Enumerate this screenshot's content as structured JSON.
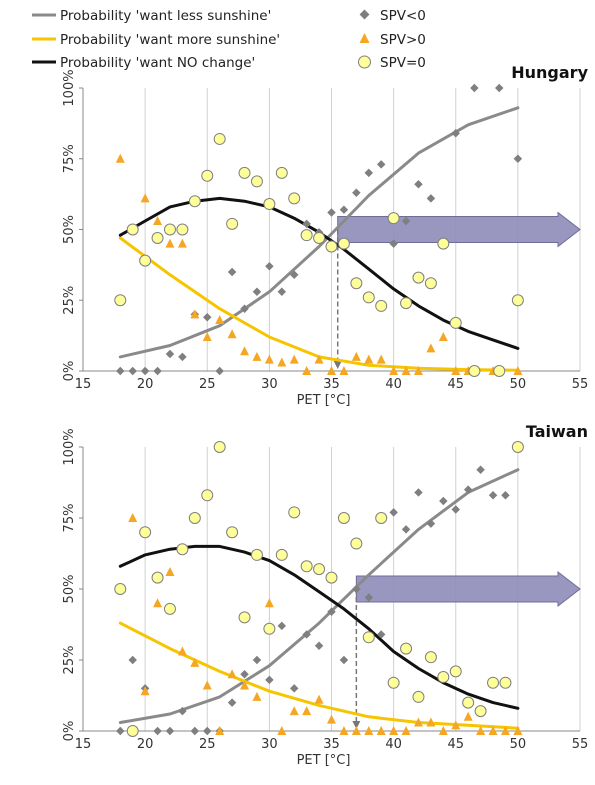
{
  "legend": {
    "less": "Probability 'want less sunshine'",
    "more": "Probability 'want more sunshine'",
    "none": "Probability 'want NO change'",
    "neg": "SPV<0",
    "pos": "SPV>0",
    "zero": "SPV=0"
  },
  "colors": {
    "less": "#8a8a8a",
    "more": "#f6c500",
    "none": "#111111",
    "neg_marker": "#7f7f7f",
    "pos_marker": "#f5a623",
    "zero_fill": "#ffff99",
    "zero_stroke": "#7f7f7f",
    "arrow": "#8e8cb8",
    "grid": "#d0d0d0"
  },
  "chart_data": [
    {
      "type": "scatter",
      "title": "Hungary",
      "xlabel": "PET [°C]",
      "ylabel": "",
      "xlim": [
        15,
        55
      ],
      "ylim": [
        0,
        1
      ],
      "xticks": [
        "15",
        "20",
        "25",
        "30",
        "35",
        "40",
        "45",
        "50",
        "55"
      ],
      "yticks": [
        "0%",
        "25%",
        "50%",
        "75%",
        "100%"
      ],
      "grid": "vertical",
      "threshold": 35.5,
      "arrow_from": 35.5,
      "arrow_y": 0.5,
      "curves": {
        "less": [
          [
            18,
            0.05
          ],
          [
            22,
            0.09
          ],
          [
            26,
            0.16
          ],
          [
            30,
            0.28
          ],
          [
            34,
            0.44
          ],
          [
            38,
            0.62
          ],
          [
            42,
            0.77
          ],
          [
            46,
            0.87
          ],
          [
            50,
            0.93
          ]
        ],
        "more": [
          [
            18,
            0.47
          ],
          [
            22,
            0.34
          ],
          [
            26,
            0.22
          ],
          [
            30,
            0.12
          ],
          [
            34,
            0.05
          ],
          [
            38,
            0.02
          ],
          [
            42,
            0.01
          ],
          [
            46,
            0.005
          ],
          [
            50,
            0.003
          ]
        ],
        "none": [
          [
            18,
            0.48
          ],
          [
            20,
            0.53
          ],
          [
            22,
            0.58
          ],
          [
            24,
            0.6
          ],
          [
            26,
            0.61
          ],
          [
            28,
            0.6
          ],
          [
            30,
            0.58
          ],
          [
            32,
            0.54
          ],
          [
            34,
            0.49
          ],
          [
            36,
            0.43
          ],
          [
            38,
            0.36
          ],
          [
            40,
            0.29
          ],
          [
            42,
            0.23
          ],
          [
            44,
            0.18
          ],
          [
            46,
            0.14
          ],
          [
            48,
            0.11
          ],
          [
            50,
            0.08
          ]
        ]
      },
      "points": {
        "neg": [
          [
            18,
            0.0
          ],
          [
            19,
            0.0
          ],
          [
            20,
            0.0
          ],
          [
            21,
            0.0
          ],
          [
            22,
            0.06
          ],
          [
            23,
            0.05
          ],
          [
            24,
            0.2
          ],
          [
            25,
            0.19
          ],
          [
            26,
            0.0
          ],
          [
            27,
            0.35
          ],
          [
            28,
            0.22
          ],
          [
            29,
            0.28
          ],
          [
            30,
            0.37
          ],
          [
            31,
            0.28
          ],
          [
            32,
            0.34
          ],
          [
            33,
            0.52
          ],
          [
            34,
            0.49
          ],
          [
            35,
            0.56
          ],
          [
            36,
            0.57
          ],
          [
            37,
            0.63
          ],
          [
            38,
            0.7
          ],
          [
            39,
            0.73
          ],
          [
            40,
            0.45
          ],
          [
            41,
            0.53
          ],
          [
            42,
            0.66
          ],
          [
            43,
            0.61
          ],
          [
            45,
            0.84
          ],
          [
            46.5,
            1.0
          ],
          [
            48.5,
            1.0
          ],
          [
            50,
            0.75
          ]
        ],
        "pos": [
          [
            18,
            0.75
          ],
          [
            20,
            0.61
          ],
          [
            21,
            0.53
          ],
          [
            22,
            0.45
          ],
          [
            23,
            0.45
          ],
          [
            24,
            0.2
          ],
          [
            25,
            0.12
          ],
          [
            26,
            0.18
          ],
          [
            27,
            0.13
          ],
          [
            28,
            0.07
          ],
          [
            29,
            0.05
          ],
          [
            30,
            0.04
          ],
          [
            31,
            0.03
          ],
          [
            32,
            0.04
          ],
          [
            33,
            0.0
          ],
          [
            34,
            0.04
          ],
          [
            35,
            0.0
          ],
          [
            36,
            0.0
          ],
          [
            37,
            0.05
          ],
          [
            38,
            0.04
          ],
          [
            39,
            0.04
          ],
          [
            40,
            0.0
          ],
          [
            41,
            0.0
          ],
          [
            42,
            0.0
          ],
          [
            43,
            0.08
          ],
          [
            44,
            0.12
          ],
          [
            45,
            0.0
          ],
          [
            46,
            0.0
          ],
          [
            48,
            0.0
          ],
          [
            50,
            0.0
          ]
        ],
        "zero": [
          [
            18,
            0.25
          ],
          [
            19,
            0.5
          ],
          [
            20,
            0.39
          ],
          [
            21,
            0.47
          ],
          [
            22,
            0.5
          ],
          [
            23,
            0.5
          ],
          [
            24,
            0.6
          ],
          [
            25,
            0.69
          ],
          [
            26,
            0.82
          ],
          [
            27,
            0.52
          ],
          [
            28,
            0.7
          ],
          [
            29,
            0.67
          ],
          [
            30,
            0.59
          ],
          [
            31,
            0.7
          ],
          [
            32,
            0.61
          ],
          [
            33,
            0.48
          ],
          [
            34,
            0.47
          ],
          [
            35,
            0.44
          ],
          [
            36,
            0.45
          ],
          [
            37,
            0.31
          ],
          [
            38,
            0.26
          ],
          [
            39,
            0.23
          ],
          [
            40,
            0.54
          ],
          [
            41,
            0.24
          ],
          [
            42,
            0.33
          ],
          [
            43,
            0.31
          ],
          [
            44,
            0.45
          ],
          [
            45,
            0.17
          ],
          [
            46.5,
            0.0
          ],
          [
            48.5,
            0.0
          ],
          [
            50,
            0.25
          ]
        ]
      }
    },
    {
      "type": "scatter",
      "title": "Taiwan",
      "xlabel": "PET [°C]",
      "ylabel": "",
      "xlim": [
        15,
        55
      ],
      "ylim": [
        0,
        1
      ],
      "xticks": [
        "15",
        "20",
        "25",
        "30",
        "35",
        "40",
        "45",
        "50",
        "55"
      ],
      "yticks": [
        "0%",
        "25%",
        "50%",
        "75%",
        "100%"
      ],
      "grid": "vertical",
      "threshold": 37,
      "arrow_from": 37,
      "arrow_y": 0.5,
      "curves": {
        "less": [
          [
            18,
            0.03
          ],
          [
            22,
            0.06
          ],
          [
            26,
            0.12
          ],
          [
            30,
            0.23
          ],
          [
            34,
            0.38
          ],
          [
            38,
            0.55
          ],
          [
            42,
            0.71
          ],
          [
            46,
            0.84
          ],
          [
            50,
            0.92
          ]
        ],
        "more": [
          [
            18,
            0.38
          ],
          [
            22,
            0.29
          ],
          [
            26,
            0.21
          ],
          [
            30,
            0.14
          ],
          [
            34,
            0.09
          ],
          [
            38,
            0.05
          ],
          [
            42,
            0.03
          ],
          [
            46,
            0.02
          ],
          [
            50,
            0.01
          ]
        ],
        "none": [
          [
            18,
            0.58
          ],
          [
            20,
            0.62
          ],
          [
            22,
            0.64
          ],
          [
            24,
            0.65
          ],
          [
            26,
            0.65
          ],
          [
            28,
            0.63
          ],
          [
            30,
            0.6
          ],
          [
            32,
            0.55
          ],
          [
            34,
            0.49
          ],
          [
            36,
            0.43
          ],
          [
            38,
            0.36
          ],
          [
            40,
            0.28
          ],
          [
            42,
            0.22
          ],
          [
            44,
            0.17
          ],
          [
            46,
            0.13
          ],
          [
            48,
            0.1
          ],
          [
            50,
            0.08
          ]
        ]
      },
      "points": {
        "neg": [
          [
            18,
            0.0
          ],
          [
            19,
            0.25
          ],
          [
            20,
            0.15
          ],
          [
            21,
            0.0
          ],
          [
            22,
            0.0
          ],
          [
            23,
            0.07
          ],
          [
            24,
            0.0
          ],
          [
            25,
            0.0
          ],
          [
            26,
            0.0
          ],
          [
            27,
            0.1
          ],
          [
            28,
            0.2
          ],
          [
            29,
            0.25
          ],
          [
            30,
            0.18
          ],
          [
            31,
            0.37
          ],
          [
            32,
            0.15
          ],
          [
            33,
            0.34
          ],
          [
            34,
            0.3
          ],
          [
            35,
            0.42
          ],
          [
            36,
            0.25
          ],
          [
            37,
            0.5
          ],
          [
            38,
            0.47
          ],
          [
            39,
            0.34
          ],
          [
            40,
            0.77
          ],
          [
            41,
            0.71
          ],
          [
            42,
            0.84
          ],
          [
            43,
            0.73
          ],
          [
            44,
            0.81
          ],
          [
            45,
            0.78
          ],
          [
            46,
            0.85
          ],
          [
            47,
            0.92
          ],
          [
            48,
            0.83
          ],
          [
            49,
            0.83
          ]
        ],
        "pos": [
          [
            19,
            0.75
          ],
          [
            20,
            0.14
          ],
          [
            21,
            0.45
          ],
          [
            22,
            0.56
          ],
          [
            23,
            0.28
          ],
          [
            24,
            0.24
          ],
          [
            25,
            0.16
          ],
          [
            26,
            0.0
          ],
          [
            27,
            0.2
          ],
          [
            28,
            0.16
          ],
          [
            29,
            0.12
          ],
          [
            30,
            0.45
          ],
          [
            31,
            0.0
          ],
          [
            32,
            0.07
          ],
          [
            33,
            0.07
          ],
          [
            34,
            0.11
          ],
          [
            35,
            0.04
          ],
          [
            36,
            0.0
          ],
          [
            37,
            0.0
          ],
          [
            38,
            0.0
          ],
          [
            39,
            0.0
          ],
          [
            40,
            0.0
          ],
          [
            41,
            0.0
          ],
          [
            42,
            0.03
          ],
          [
            43,
            0.03
          ],
          [
            44,
            0.0
          ],
          [
            45,
            0.02
          ],
          [
            46,
            0.05
          ],
          [
            47,
            0.0
          ],
          [
            48,
            0.0
          ],
          [
            49,
            0.0
          ],
          [
            50,
            0.0
          ]
        ],
        "zero": [
          [
            18,
            0.5
          ],
          [
            19,
            0.0
          ],
          [
            20,
            0.7
          ],
          [
            21,
            0.54
          ],
          [
            22,
            0.43
          ],
          [
            23,
            0.64
          ],
          [
            24,
            0.75
          ],
          [
            25,
            0.83
          ],
          [
            26,
            1.0
          ],
          [
            27,
            0.7
          ],
          [
            28,
            0.4
          ],
          [
            29,
            0.62
          ],
          [
            30,
            0.36
          ],
          [
            31,
            0.62
          ],
          [
            32,
            0.77
          ],
          [
            33,
            0.58
          ],
          [
            34,
            0.57
          ],
          [
            35,
            0.54
          ],
          [
            36,
            0.75
          ],
          [
            37,
            0.66
          ],
          [
            38,
            0.33
          ],
          [
            39,
            0.75
          ],
          [
            40,
            0.17
          ],
          [
            41,
            0.29
          ],
          [
            42,
            0.12
          ],
          [
            43,
            0.26
          ],
          [
            44,
            0.19
          ],
          [
            45,
            0.21
          ],
          [
            46,
            0.1
          ],
          [
            47,
            0.07
          ],
          [
            48,
            0.17
          ],
          [
            49,
            0.17
          ],
          [
            50,
            1.0
          ]
        ]
      }
    }
  ]
}
